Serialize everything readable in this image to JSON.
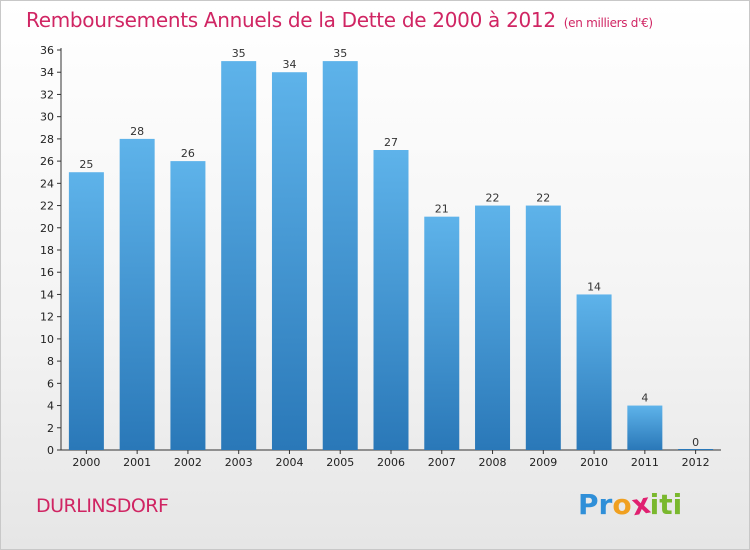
{
  "chart_data": {
    "type": "bar",
    "title": "Remboursements Annuels de la Dette de 2000 à 2012",
    "subtitle": "(en milliers d'€)",
    "categories": [
      "2000",
      "2001",
      "2002",
      "2003",
      "2004",
      "2005",
      "2006",
      "2007",
      "2008",
      "2009",
      "2010",
      "2011",
      "2012"
    ],
    "values": [
      25,
      28,
      26,
      35,
      34,
      35,
      27,
      21,
      22,
      22,
      14,
      4,
      0
    ],
    "ylim": [
      0,
      36
    ],
    "yticks": [
      0,
      2,
      4,
      6,
      8,
      10,
      12,
      14,
      16,
      18,
      20,
      22,
      24,
      26,
      28,
      30,
      32,
      34,
      36
    ],
    "grid": false,
    "bar_color_top": "#5eb3ea",
    "bar_color_bottom": "#2a78b8"
  },
  "commune": "DURLINSDORF",
  "logo": {
    "letters": [
      "P",
      "r",
      "o",
      "x",
      "i",
      "t",
      "i"
    ],
    "colors": [
      "#2f8fd8",
      "#2f8fd8",
      "#f0a020",
      "#e02070",
      "#7ab82e",
      "#7ab82e",
      "#7ab82e"
    ]
  },
  "title_color": "#d02563"
}
